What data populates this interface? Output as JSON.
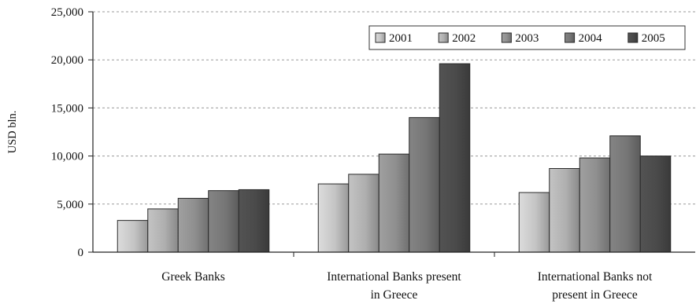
{
  "chart_data": {
    "type": "bar",
    "title": "",
    "xlabel": "",
    "ylabel": "USD bln.",
    "ylim": [
      0,
      25000
    ],
    "yticks": [
      0,
      5000,
      10000,
      15000,
      20000,
      25000
    ],
    "ytick_labels": [
      "0",
      "5,000",
      "10,000",
      "15,000",
      "20,000",
      "25,000"
    ],
    "grid": "horizontal dashed",
    "legend_position": "top-right",
    "categories": [
      [
        "Greek Banks"
      ],
      [
        "International Banks present",
        "in Greece"
      ],
      [
        "International Banks not",
        "present in Greece"
      ]
    ],
    "series": [
      {
        "name": "2001",
        "color": "#c4c4c4",
        "values": [
          3300,
          7100,
          6200
        ]
      },
      {
        "name": "2002",
        "color": "#afafaf",
        "values": [
          4500,
          8100,
          8700
        ]
      },
      {
        "name": "2003",
        "color": "#8f8f8f",
        "values": [
          5600,
          10200,
          9800
        ]
      },
      {
        "name": "2004",
        "color": "#767676",
        "values": [
          6400,
          14000,
          12100
        ]
      },
      {
        "name": "2005",
        "color": "#4a4a4a",
        "values": [
          6500,
          19600,
          10000
        ]
      }
    ]
  }
}
